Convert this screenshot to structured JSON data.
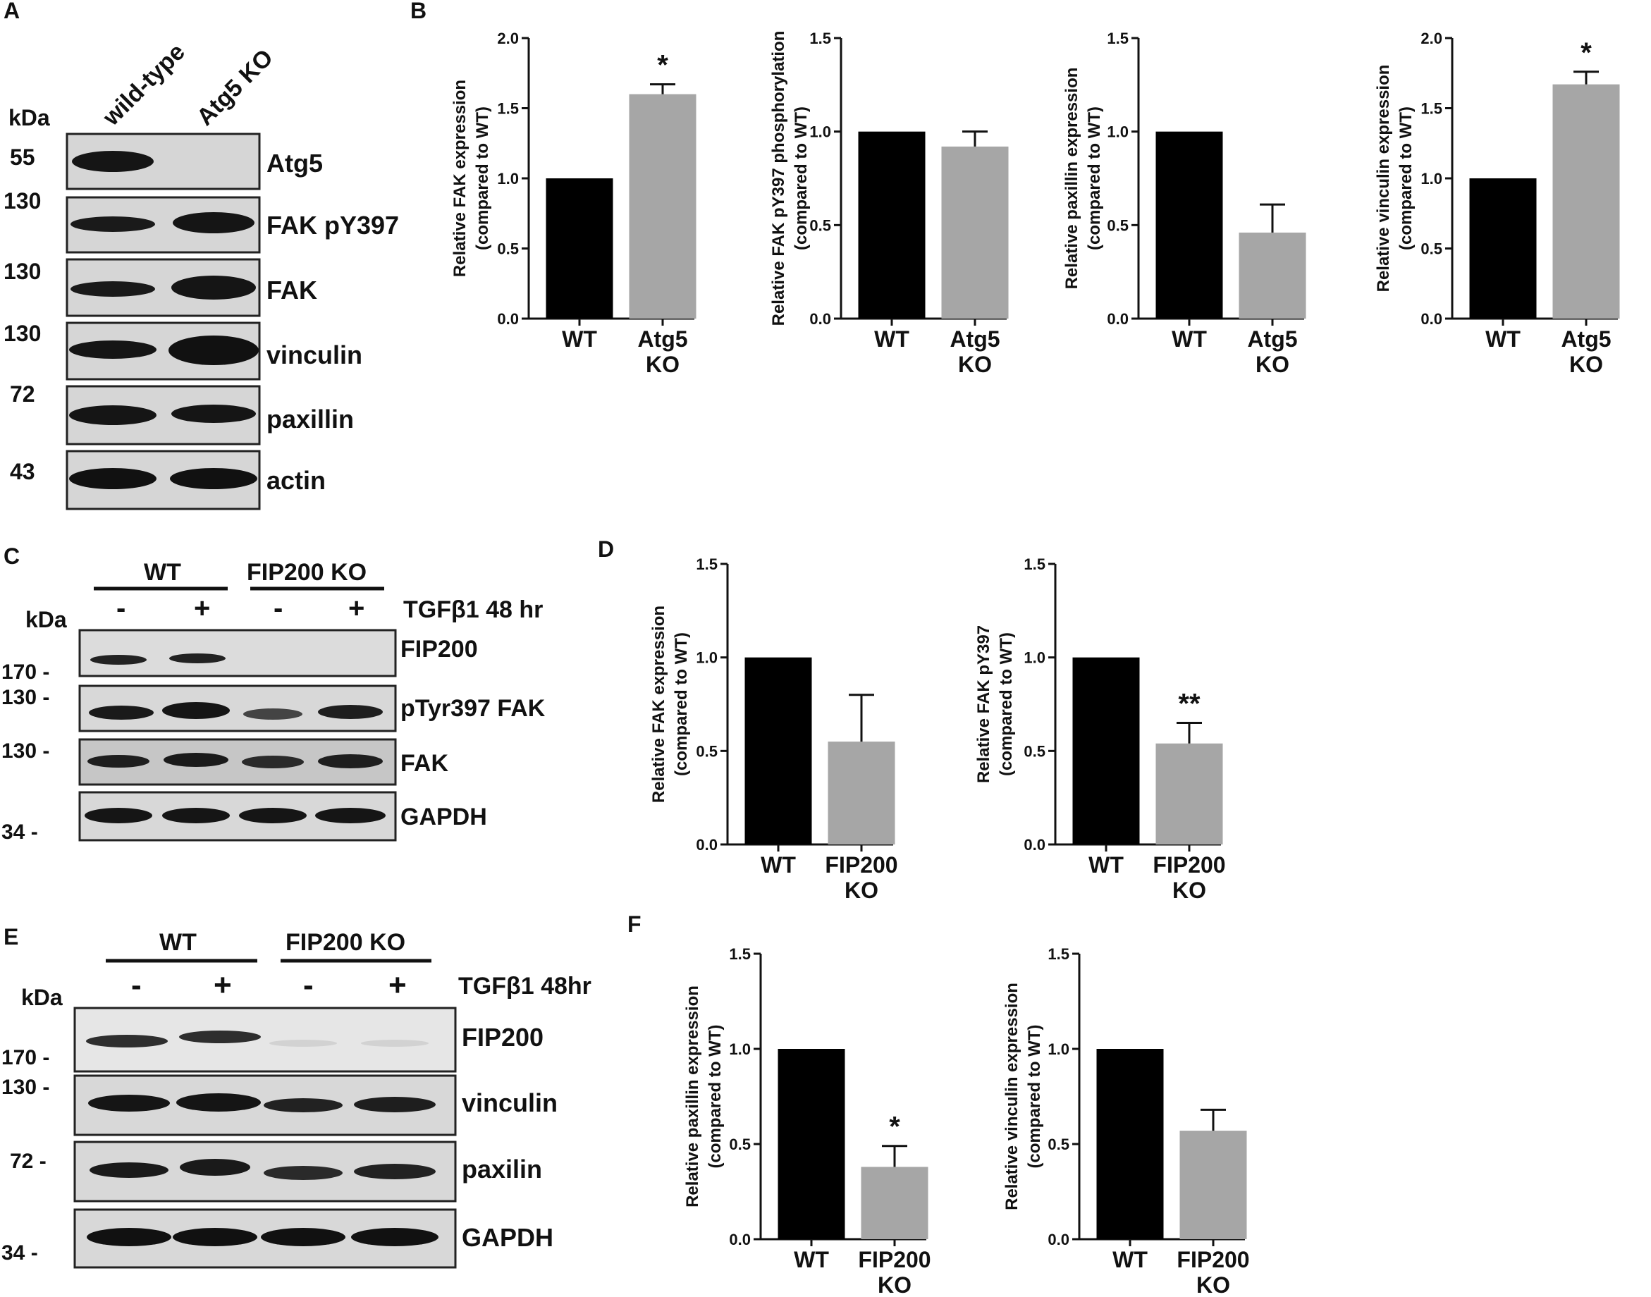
{
  "figure": {
    "panel_labels": {
      "A": "A",
      "B": "B",
      "C": "C",
      "D": "D",
      "E": "E",
      "F": "F"
    }
  },
  "colors": {
    "wt_bar": "#000000",
    "ko_bar": "#a6a6a6",
    "blot_bg": "#d8d8d8",
    "band": "#1a1a1a"
  },
  "blot_A": {
    "lanes": [
      "wild-type",
      "Atg5 KO"
    ],
    "kda_label": "kDa",
    "rows": [
      {
        "mw": "55",
        "protein": "Atg5"
      },
      {
        "mw": "130",
        "protein": "FAK pY397"
      },
      {
        "mw": "130",
        "protein": "FAK"
      },
      {
        "mw": "130",
        "protein": "vinculin"
      },
      {
        "mw": "72",
        "protein": "paxillin"
      },
      {
        "mw": "43",
        "protein": "actin"
      }
    ]
  },
  "blot_C": {
    "groups": [
      "WT",
      "FIP200 KO"
    ],
    "treatments": [
      "-",
      "+",
      "-",
      "+"
    ],
    "treatment_label": "TGFβ1 48 hr",
    "kda_label": "kDa",
    "rows": [
      {
        "mw": "170 -",
        "protein": "FIP200"
      },
      {
        "mw": "130 -",
        "protein": "pTyr397 FAK"
      },
      {
        "mw": "130 -",
        "protein": "FAK"
      },
      {
        "mw": "34 -",
        "protein": "GAPDH"
      }
    ]
  },
  "blot_E": {
    "groups": [
      "WT",
      "FIP200 KO"
    ],
    "treatments": [
      "-",
      "+",
      "-",
      "+"
    ],
    "treatment_label": "TGFβ1 48hr",
    "kda_label": "kDa",
    "rows": [
      {
        "mw": "170 -",
        "protein": "FIP200"
      },
      {
        "mw": "130 -",
        "protein": "vinculin"
      },
      {
        "mw": "72 -",
        "protein": "paxilin"
      },
      {
        "mw": "34 -",
        "protein": "GAPDH"
      }
    ]
  },
  "chart_data": [
    {
      "panel": "B",
      "type": "bar",
      "ylabel": [
        "Relative FAK expression",
        "(compared to WT)"
      ],
      "categories": [
        "WT",
        "Atg5 KO"
      ],
      "values": [
        1.0,
        1.6
      ],
      "errors": [
        0,
        0.07
      ],
      "sig": [
        "",
        "*"
      ],
      "ylim": [
        0,
        2.0
      ],
      "yticks": [
        "0.0",
        "0.5",
        "1.0",
        "1.5",
        "2.0"
      ]
    },
    {
      "panel": "B",
      "type": "bar",
      "ylabel": [
        "Relative FAK pY397 phosphorylation",
        "(compared to WT)"
      ],
      "categories": [
        "WT",
        "Atg5 KO"
      ],
      "values": [
        1.0,
        0.92
      ],
      "errors": [
        0,
        0.08
      ],
      "sig": [
        "",
        ""
      ],
      "ylim": [
        0,
        1.5
      ],
      "yticks": [
        "0.0",
        "0.5",
        "1.0",
        "1.5"
      ]
    },
    {
      "panel": "B",
      "type": "bar",
      "ylabel": [
        "Relative paxillin expression",
        "(compared to WT)"
      ],
      "categories": [
        "WT",
        "Atg5 KO"
      ],
      "values": [
        1.0,
        0.46
      ],
      "errors": [
        0,
        0.15
      ],
      "sig": [
        "",
        ""
      ],
      "ylim": [
        0,
        1.5
      ],
      "yticks": [
        "0.0",
        "0.5",
        "1.0",
        "1.5"
      ]
    },
    {
      "panel": "B",
      "type": "bar",
      "ylabel": [
        "Relative vinculin expression",
        "(compared to WT)"
      ],
      "categories": [
        "WT",
        "Atg5 KO"
      ],
      "values": [
        1.0,
        1.67
      ],
      "errors": [
        0,
        0.09
      ],
      "sig": [
        "",
        "*"
      ],
      "ylim": [
        0,
        2.0
      ],
      "yticks": [
        "0.0",
        "0.5",
        "1.0",
        "1.5",
        "2.0"
      ]
    },
    {
      "panel": "D",
      "type": "bar",
      "ylabel": [
        "Relative FAK expression",
        "(compared to WT)"
      ],
      "categories": [
        "WT",
        "FIP200 KO"
      ],
      "values": [
        1.0,
        0.55
      ],
      "errors": [
        0,
        0.25
      ],
      "sig": [
        "",
        ""
      ],
      "ylim": [
        0,
        1.5
      ],
      "yticks": [
        "0.0",
        "0.5",
        "1.0",
        "1.5"
      ]
    },
    {
      "panel": "D",
      "type": "bar",
      "ylabel": [
        "Relative FAK pY397",
        "(compared to WT)"
      ],
      "categories": [
        "WT",
        "FIP200 KO"
      ],
      "values": [
        1.0,
        0.54
      ],
      "errors": [
        0,
        0.11
      ],
      "sig": [
        "",
        "**"
      ],
      "ylim": [
        0,
        1.5
      ],
      "yticks": [
        "0.0",
        "0.5",
        "1.0",
        "1.5"
      ]
    },
    {
      "panel": "F",
      "type": "bar",
      "ylabel": [
        "Relative paxillin expression",
        "(compared to WT)"
      ],
      "categories": [
        "WT",
        "FIP200 KO"
      ],
      "values": [
        1.0,
        0.38
      ],
      "errors": [
        0,
        0.11
      ],
      "sig": [
        "",
        "*"
      ],
      "ylim": [
        0,
        1.5
      ],
      "yticks": [
        "0.0",
        "0.5",
        "1.0",
        "1.5"
      ]
    },
    {
      "panel": "F",
      "type": "bar",
      "ylabel": [
        "Relative vinculin expression",
        "(compared to WT)"
      ],
      "categories": [
        "WT",
        "FIP200 KO"
      ],
      "values": [
        1.0,
        0.57
      ],
      "errors": [
        0,
        0.11
      ],
      "sig": [
        "",
        ""
      ],
      "ylim": [
        0,
        1.5
      ],
      "yticks": [
        "0.0",
        "0.5",
        "1.0",
        "1.5"
      ]
    }
  ]
}
